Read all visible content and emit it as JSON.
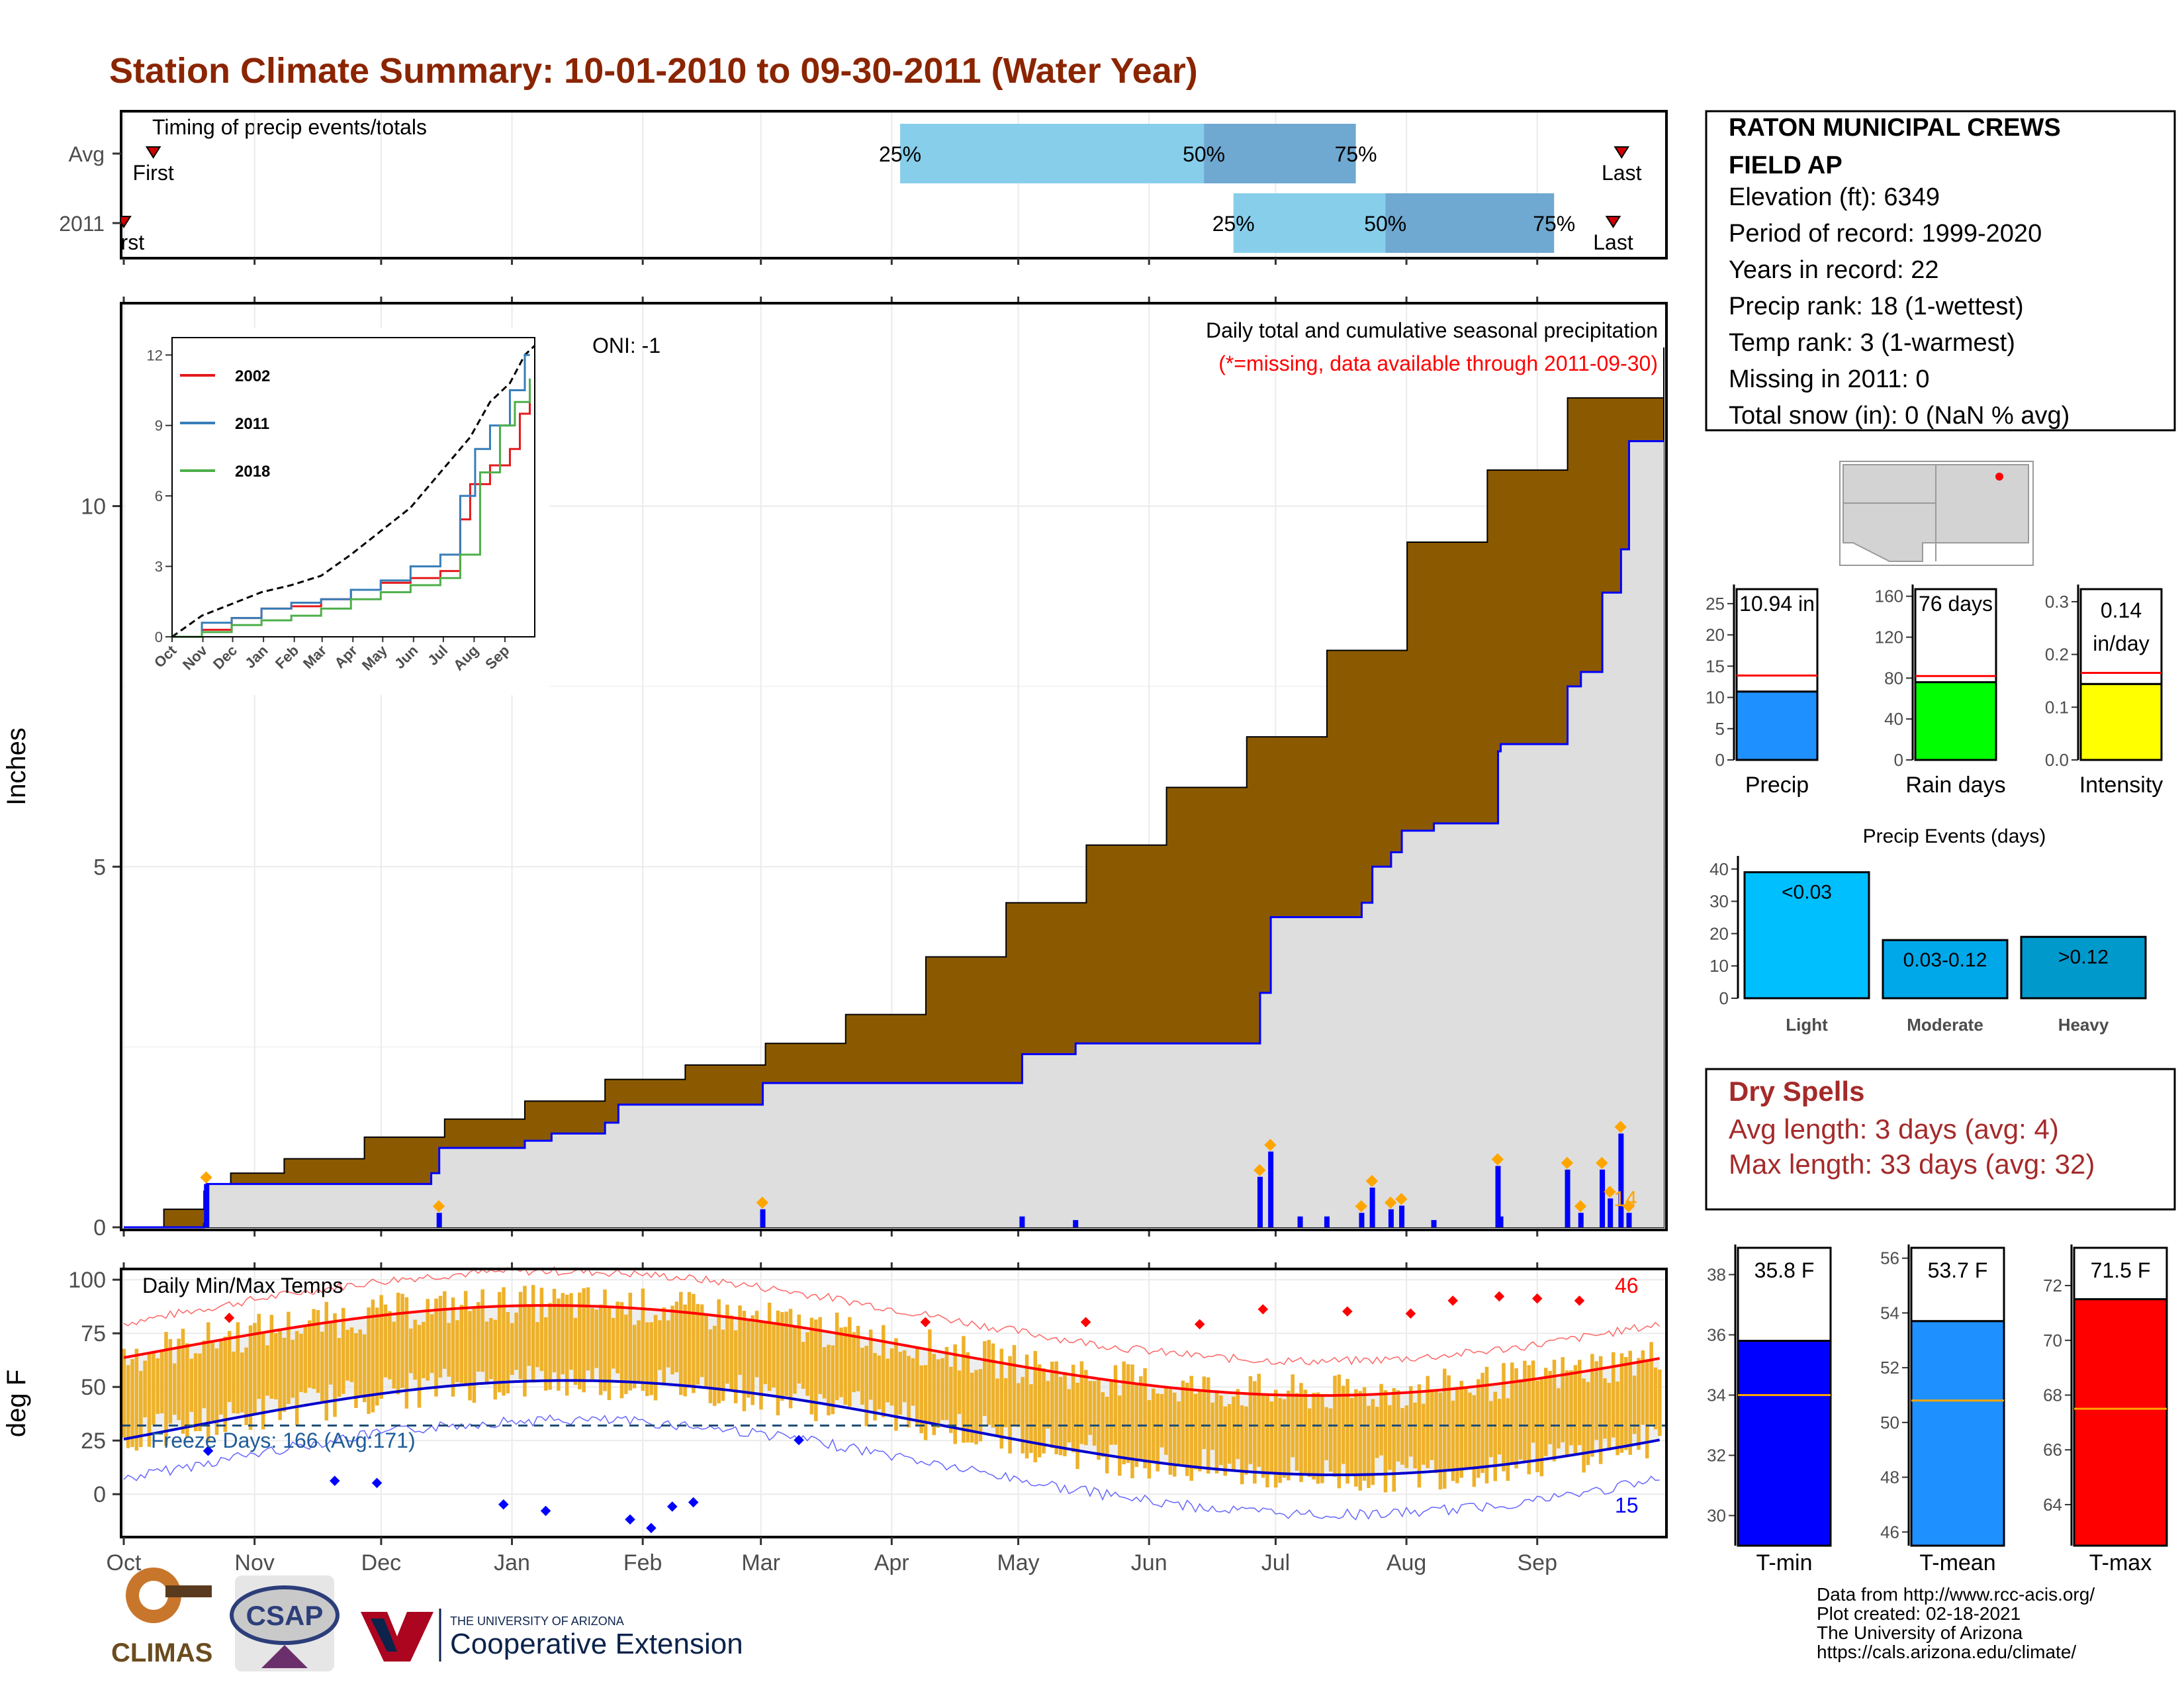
{
  "title": "Station Climate Summary: 10-01-2010 to 09-30-2011 (Water Year)",
  "months": [
    "Oct",
    "Nov",
    "Dec",
    "Jan",
    "Feb",
    "Mar",
    "Apr",
    "May",
    "Jun",
    "Jul",
    "Aug",
    "Sep"
  ],
  "colors": {
    "title": "#8b2500",
    "brown": "#8b5a00",
    "grey_fill": "#dedede",
    "blue_line": "#0000ff",
    "orange": "#ffa500",
    "light_blue": "#87ceeb",
    "steel_blue": "#6fa8d0",
    "temp_bar": "#eeb12a",
    "red": "#ff0000"
  },
  "timing": {
    "label": "Timing of precip events/totals",
    "rows": [
      {
        "name": "Avg",
        "first_label": "First",
        "last_label": "Last",
        "p25_label": "25%",
        "p50_label": "50%",
        "p75_label": "75%",
        "first_day": 7,
        "p25_day": 184,
        "p50_day": 256,
        "p75_day": 292,
        "last_day": 355
      },
      {
        "name": "2011",
        "first_label": "First",
        "last_label": "Last",
        "p25_label": "25%",
        "p50_label": "50%",
        "p75_label": "75%",
        "first_day": 0,
        "p25_day": 263,
        "p50_day": 299,
        "p75_day": 339,
        "last_day": 353
      }
    ]
  },
  "precip": {
    "ylabel": "Inches",
    "y_ticks": [
      "0",
      "5",
      "10"
    ],
    "ylim": [
      0,
      12.3
    ],
    "oni_label": "ONI: -1",
    "subtitle": "Daily total and cumulative seasonal precipitation",
    "missing_note": "(*=missing, data available through 2011-09-30)",
    "extreme_count": "14",
    "avg_cumulative": [
      [
        0,
        0
      ],
      [
        15,
        0.25
      ],
      [
        30,
        0.5
      ],
      [
        40,
        0.75
      ],
      [
        60,
        0.95
      ],
      [
        90,
        1.25
      ],
      [
        120,
        1.5
      ],
      [
        150,
        1.75
      ],
      [
        180,
        2.05
      ],
      [
        210,
        2.25
      ],
      [
        240,
        2.55
      ],
      [
        270,
        2.95
      ],
      [
        300,
        3.75
      ],
      [
        330,
        4.5
      ],
      [
        360,
        5.3
      ],
      [
        390,
        6.1
      ],
      [
        420,
        6.8
      ],
      [
        450,
        8.0
      ],
      [
        480,
        9.5
      ],
      [
        510,
        10.5
      ],
      [
        540,
        11.5
      ],
      [
        576,
        12.2
      ]
    ],
    "year_cumulative": [
      [
        0,
        0
      ],
      [
        30,
        0.05
      ],
      [
        31,
        0.6
      ],
      [
        74,
        0.6
      ],
      [
        115,
        0.75
      ],
      [
        118,
        1.1
      ],
      [
        150,
        1.2
      ],
      [
        160,
        1.3
      ],
      [
        180,
        1.45
      ],
      [
        185,
        1.7
      ],
      [
        230,
        1.7
      ],
      [
        239,
        2.0
      ],
      [
        330,
        2.0
      ],
      [
        336,
        2.4
      ],
      [
        354,
        2.4
      ],
      [
        356,
        2.55
      ],
      [
        420,
        2.55
      ],
      [
        425,
        3.25
      ],
      [
        429,
        4.3
      ],
      [
        463,
        4.5
      ],
      [
        467,
        5.0
      ],
      [
        474,
        5.2
      ],
      [
        478,
        5.5
      ],
      [
        490,
        5.6
      ],
      [
        503,
        5.6
      ],
      [
        514,
        6.6
      ],
      [
        515,
        6.7
      ],
      [
        534,
        6.7
      ],
      [
        540,
        7.5
      ],
      [
        545,
        7.7
      ],
      [
        553,
        8.8
      ],
      [
        560,
        9.4
      ],
      [
        563,
        10.9
      ],
      [
        576,
        10.9
      ]
    ],
    "daily_bars": [
      [
        31,
        0.6
      ],
      [
        118,
        0.2
      ],
      [
        239,
        0.25
      ],
      [
        336,
        0.15
      ],
      [
        356,
        0.1
      ],
      [
        425,
        0.7
      ],
      [
        429,
        1.05
      ],
      [
        440,
        0.15
      ],
      [
        450,
        0.15
      ],
      [
        463,
        0.2
      ],
      [
        467,
        0.55
      ],
      [
        474,
        0.25
      ],
      [
        478,
        0.3
      ],
      [
        490,
        0.1
      ],
      [
        514,
        0.85
      ],
      [
        515,
        0.15
      ],
      [
        540,
        0.8
      ],
      [
        545,
        0.2
      ],
      [
        553,
        0.8
      ],
      [
        556,
        0.4
      ],
      [
        560,
        1.3
      ],
      [
        563,
        0.2
      ]
    ]
  },
  "inset": {
    "y_ticks": [
      "0",
      "3",
      "6",
      "9",
      "12"
    ],
    "x_ticks": [
      "Oct",
      "Nov",
      "Dec",
      "Jan",
      "Feb",
      "Mar",
      "Apr",
      "May",
      "Jun",
      "Jul",
      "Aug",
      "Sep"
    ],
    "series": [
      {
        "name": "2002",
        "color": "#e41a1c",
        "values": [
          [
            0,
            0
          ],
          [
            30,
            0.3
          ],
          [
            60,
            0.8
          ],
          [
            90,
            1.2
          ],
          [
            120,
            1.3
          ],
          [
            150,
            1.6
          ],
          [
            180,
            2.0
          ],
          [
            210,
            2.3
          ],
          [
            240,
            2.5
          ],
          [
            270,
            2.8
          ],
          [
            290,
            5.0
          ],
          [
            300,
            6.5
          ],
          [
            320,
            7.3
          ],
          [
            340,
            8.0
          ],
          [
            350,
            9.5
          ],
          [
            360,
            10.6
          ]
        ]
      },
      {
        "name": "2011",
        "color": "#377eb8",
        "values": [
          [
            0,
            0
          ],
          [
            30,
            0.6
          ],
          [
            60,
            0.8
          ],
          [
            90,
            1.2
          ],
          [
            120,
            1.45
          ],
          [
            150,
            1.6
          ],
          [
            180,
            2.0
          ],
          [
            210,
            2.4
          ],
          [
            240,
            3.0
          ],
          [
            270,
            3.5
          ],
          [
            290,
            6.0
          ],
          [
            305,
            8.0
          ],
          [
            320,
            9.0
          ],
          [
            340,
            10.5
          ],
          [
            355,
            12.0
          ],
          [
            360,
            12.0
          ]
        ]
      },
      {
        "name": "2018",
        "color": "#4daf4a",
        "values": [
          [
            0,
            0
          ],
          [
            30,
            0.2
          ],
          [
            60,
            0.5
          ],
          [
            90,
            0.7
          ],
          [
            120,
            0.9
          ],
          [
            150,
            1.2
          ],
          [
            180,
            1.6
          ],
          [
            210,
            1.9
          ],
          [
            240,
            2.2
          ],
          [
            270,
            2.5
          ],
          [
            290,
            3.5
          ],
          [
            310,
            7.0
          ],
          [
            330,
            9.0
          ],
          [
            345,
            10.0
          ],
          [
            360,
            11.0
          ]
        ]
      }
    ]
  },
  "station": {
    "name": "RATON MUNICIPAL CREWS",
    "name2": "FIELD AP",
    "lines": [
      "Elevation (ft): 6349",
      "Period of record: 1999-2020",
      "Years in record: 22",
      "Precip rank: 18 (1-wettest)",
      "Temp rank: 3 (1-warmest)",
      "Missing in 2011: 0",
      "Total snow (in): 0 (NaN % avg)"
    ]
  },
  "summary_bars": [
    {
      "label": "Precip",
      "value_label": "10.94 in",
      "value": 10.94,
      "avg": 13.5,
      "max": 27,
      "ticks": [
        "0",
        "5",
        "10",
        "15",
        "20",
        "25"
      ],
      "tick_vals": [
        0,
        5,
        10,
        15,
        20,
        25
      ],
      "color": "#1e90ff"
    },
    {
      "label": "Rain days",
      "value_label": "76 days",
      "value": 76,
      "avg": 82,
      "max": 165,
      "ticks": [
        "0",
        "40",
        "80",
        "120",
        "160"
      ],
      "tick_vals": [
        0,
        40,
        80,
        120,
        160
      ],
      "color": "#00ff00"
    },
    {
      "label": "Intensity",
      "value_label": "0.14",
      "value_label2": "in/day",
      "value": 0.144,
      "avg": 0.165,
      "max": 0.32,
      "ticks": [
        "0.0",
        "0.1",
        "0.2",
        "0.3"
      ],
      "tick_vals": [
        0,
        0.1,
        0.2,
        0.3
      ],
      "color": "#ffff00"
    }
  ],
  "events": {
    "title": "Precip Events (days)",
    "ticks": [
      "0",
      "10",
      "20",
      "30",
      "40"
    ],
    "tick_vals": [
      0,
      10,
      20,
      30,
      40
    ],
    "bars": [
      {
        "label": "Light",
        "value": 39,
        "text": "<0.03",
        "color": "#00bfff"
      },
      {
        "label": "Moderate",
        "value": 18,
        "text": "0.03-0.12",
        "color": "#00a8ea"
      },
      {
        "label": "Heavy",
        "value": 19,
        "text": ">0.12",
        "color": "#0099cc"
      }
    ]
  },
  "dry_spells": {
    "title": "Dry Spells",
    "line1": "Avg length: 3 days (avg: 4)",
    "line2": "Max length: 33 days (avg: 32)"
  },
  "temps": {
    "ylabel": "deg F",
    "label": "Daily Min/Max Temps",
    "y_ticks": [
      "0",
      "25",
      "50",
      "75",
      "100"
    ],
    "tick_vals": [
      0,
      25,
      50,
      75,
      100
    ],
    "ylim": [
      -20,
      105
    ],
    "freeze_label": "Freeze Days: 166 (Avg:171)",
    "freeze_line": 32,
    "hot_count": "46",
    "cold_count": "15"
  },
  "temp_summary": [
    {
      "label": "T-min",
      "value_label": "35.8 F",
      "value": 35.8,
      "avg": 34.0,
      "min": 29,
      "max": 39,
      "ticks": [
        "30",
        "32",
        "34",
        "36",
        "38"
      ],
      "tick_vals": [
        30,
        32,
        34,
        36,
        38
      ],
      "color": "#0000ff"
    },
    {
      "label": "T-mean",
      "value_label": "53.7 F",
      "value": 53.7,
      "avg": 50.8,
      "min": 45.5,
      "max": 56.5,
      "ticks": [
        "46",
        "48",
        "50",
        "52",
        "54",
        "56"
      ],
      "tick_vals": [
        46,
        48,
        50,
        52,
        54,
        56
      ],
      "color": "#1e90ff"
    },
    {
      "label": "T-max",
      "value_label": "71.5 F",
      "value": 71.5,
      "avg": 67.5,
      "min": 62.5,
      "max": 73.5,
      "ticks": [
        "64",
        "66",
        "68",
        "70",
        "72"
      ],
      "tick_vals": [
        64,
        66,
        68,
        70,
        72
      ],
      "color": "#ff0000"
    }
  ],
  "footer": {
    "line1": "Data from http://www.rcc-acis.org/",
    "line2": "Plot created: 02-18-2021",
    "line3": "The University of Arizona",
    "line4": "https://cals.arizona.edu/climate/",
    "logo1": "CLIMAS",
    "logo2": "CSAP",
    "ua_small": "THE UNIVERSITY OF ARIZONA",
    "ua_big": "Cooperative Extension"
  }
}
